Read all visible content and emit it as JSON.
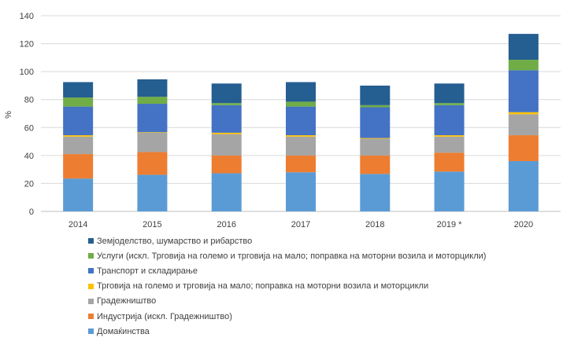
{
  "chart_data": {
    "type": "bar",
    "stacked": true,
    "categories": [
      "2014",
      "2015",
      "2016",
      "2017",
      "2018",
      "2019 *",
      "2020"
    ],
    "ylabel": "%",
    "ylim": [
      0,
      140
    ],
    "yticks": [
      0,
      20,
      40,
      60,
      80,
      100,
      120,
      140
    ],
    "grid": true,
    "legend_position": "bottom",
    "series": [
      {
        "name": "Домаќинства",
        "color": "#5b9bd5",
        "values": [
          23.5,
          26.2,
          27.3,
          28.0,
          26.8,
          28.5,
          36.0
        ]
      },
      {
        "name": "Индустрија (искл. Градежништво)",
        "color": "#ed7d31",
        "values": [
          17.5,
          16.3,
          12.7,
          12.0,
          13.2,
          13.5,
          18.5
        ]
      },
      {
        "name": "Градежништво",
        "color": "#a5a5a5",
        "values": [
          12.5,
          14.0,
          15.3,
          13.5,
          12.0,
          11.5,
          15.0
        ]
      },
      {
        "name": "Трговија на големо и трговија на мало; поправка на моторни возила и моторцикли",
        "color": "#ffc000",
        "values": [
          1.0,
          0.3,
          1.0,
          1.0,
          0.5,
          1.0,
          1.5
        ]
      },
      {
        "name": "Транспорт и складирање",
        "color": "#4472c4",
        "values": [
          20.5,
          20.2,
          19.7,
          20.5,
          22.0,
          21.5,
          30.0
        ]
      },
      {
        "name": "Услуги (искл. Трговија на големо и трговија на мало; поправка на моторни возила и моторцикли)",
        "color": "#70ad47",
        "values": [
          6.5,
          5.0,
          1.5,
          3.5,
          1.5,
          1.5,
          7.5
        ]
      },
      {
        "name": "Земјоделство, шумарство и рибарство",
        "color": "#255e91",
        "values": [
          11.0,
          12.5,
          14.0,
          14.0,
          14.0,
          14.0,
          18.5
        ]
      }
    ]
  }
}
